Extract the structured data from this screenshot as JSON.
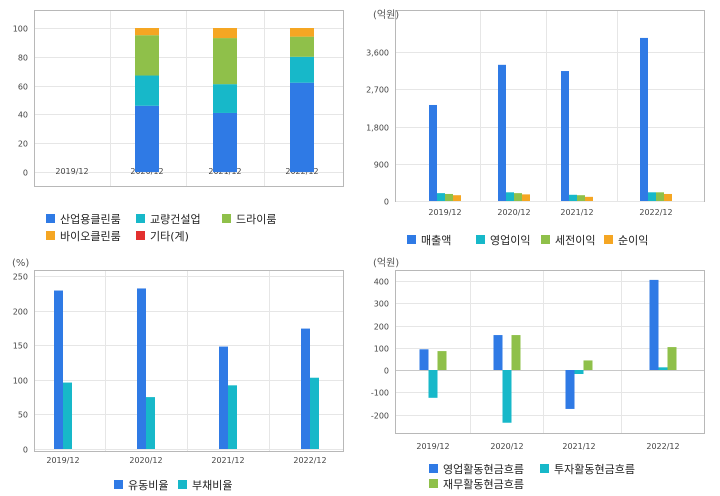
{
  "chart_data": [
    {
      "type": "bar",
      "stacked": true,
      "title": "",
      "unit": "",
      "categories": [
        "2019/12",
        "2020/12",
        "2021/12",
        "2022/12"
      ],
      "ylim": [
        0,
        100
      ],
      "yticks": [
        "0",
        "20",
        "40",
        "60",
        "80",
        "100"
      ],
      "series": [
        {
          "name": "산업용클린룸",
          "color": "#2f7ae5",
          "values": [
            null,
            46,
            41,
            62
          ]
        },
        {
          "name": "교량건설업",
          "color": "#17b8c9",
          "values": [
            null,
            21,
            20,
            18
          ]
        },
        {
          "name": "드라이룸",
          "color": "#8fc04a",
          "values": [
            null,
            28,
            32,
            14
          ]
        },
        {
          "name": "바이오클린룸",
          "color": "#f5a623",
          "values": [
            null,
            5,
            7,
            6
          ]
        },
        {
          "name": "기타(계)",
          "color": "#e3302f",
          "values": [
            null,
            0,
            0,
            0
          ]
        }
      ],
      "grid": true,
      "legend": "bottom"
    },
    {
      "type": "bar",
      "title": "",
      "unit": "(억원)",
      "categories": [
        "2019/12",
        "2020/12",
        "2021/12",
        "2022/12"
      ],
      "ylim": [
        0,
        4000
      ],
      "yticks": [
        "0",
        "900",
        "1,800",
        "2,700",
        "3,600"
      ],
      "series": [
        {
          "name": "매출액",
          "color": "#2f7ae5",
          "values": [
            2320,
            3290,
            3140,
            3940
          ]
        },
        {
          "name": "영업이익",
          "color": "#17b8c9",
          "values": [
            190,
            210,
            150,
            210
          ]
        },
        {
          "name": "세전이익",
          "color": "#8fc04a",
          "values": [
            170,
            190,
            140,
            210
          ]
        },
        {
          "name": "순이익",
          "color": "#f5a623",
          "values": [
            140,
            160,
            100,
            170
          ]
        }
      ],
      "grid": true,
      "legend": "bottom"
    },
    {
      "type": "bar",
      "title": "",
      "unit": "(%)",
      "categories": [
        "2019/12",
        "2020/12",
        "2021/12",
        "2022/12"
      ],
      "ylim": [
        0,
        260
      ],
      "yticks": [
        "0",
        "50",
        "100",
        "150",
        "200",
        "250"
      ],
      "series": [
        {
          "name": "유동비율",
          "color": "#2f7ae5",
          "values": [
            229,
            232,
            148,
            174
          ]
        },
        {
          "name": "부채비율",
          "color": "#17b8c9",
          "values": [
            96,
            75,
            92,
            103
          ]
        }
      ],
      "grid": true,
      "legend": "bottom"
    },
    {
      "type": "bar",
      "title": "",
      "unit": "(억원)",
      "categories": [
        "2019/12",
        "2020/12",
        "2021/12",
        "2022/12"
      ],
      "ylim": [
        -270,
        420
      ],
      "yticks": [
        "-200",
        "-100",
        "0",
        "100",
        "200",
        "300",
        "400"
      ],
      "series": [
        {
          "name": "영업활동현금흐름",
          "color": "#2f7ae5",
          "values": [
            93,
            157,
            -175,
            405
          ]
        },
        {
          "name": "투자활동현금흐름",
          "color": "#17b8c9",
          "values": [
            -125,
            -237,
            -18,
            12
          ]
        },
        {
          "name": "재무활동현금흐름",
          "color": "#8fc04a",
          "values": [
            85,
            157,
            43,
            103
          ]
        }
      ],
      "grid": true,
      "legend": "bottom"
    }
  ]
}
